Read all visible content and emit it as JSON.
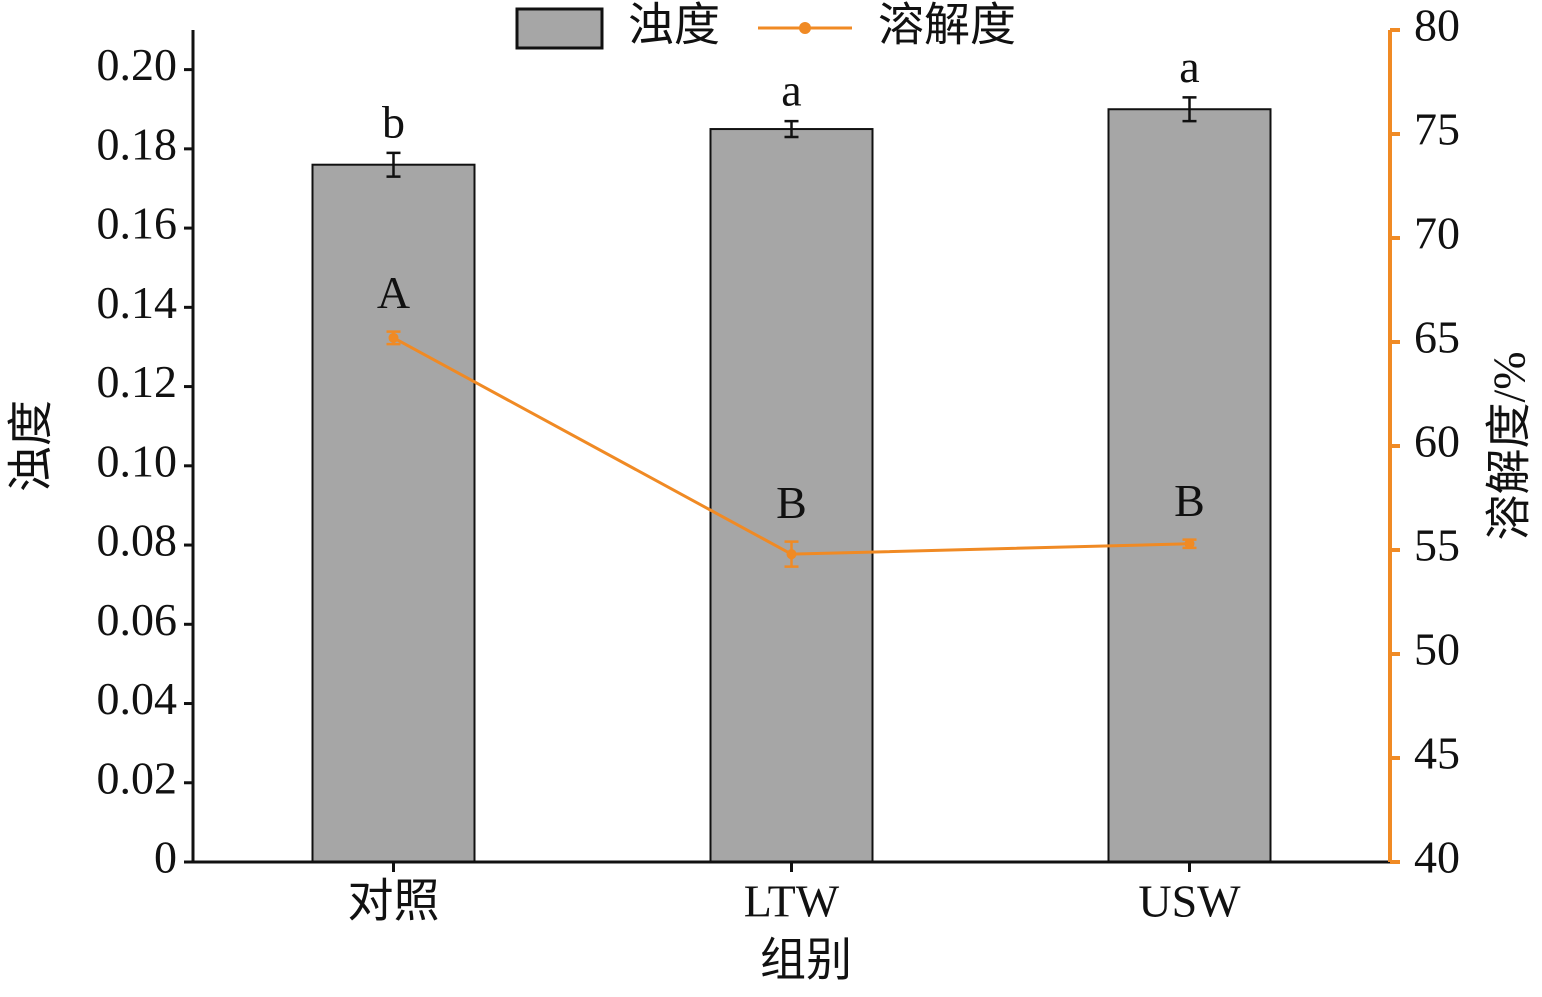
{
  "chart_data": {
    "type": "combo",
    "categories": [
      "对照",
      "LTW",
      "USW"
    ],
    "xlabel": "组别",
    "ylabel": "浊度",
    "y2label": "溶解度/%",
    "ylim": [
      0,
      0.21
    ],
    "yticks": [
      0,
      0.02,
      0.04,
      0.06,
      0.08,
      {
        "value": 0.1,
        "label": "0.10"
      },
      0.12,
      0.14,
      0.16,
      0.18,
      {
        "value": 0.2,
        "label": "0.20"
      }
    ],
    "y2lim": [
      40,
      80
    ],
    "y2ticks": [
      40,
      45,
      50,
      55,
      60,
      65,
      70,
      75,
      80
    ],
    "legend": "top",
    "series": [
      {
        "name": "浊度",
        "type": "bar",
        "color": "#a6a6a6",
        "values": [
          0.176,
          0.185,
          0.19
        ],
        "errors": [
          0.003,
          0.002,
          0.003
        ],
        "significance": [
          "b",
          "a",
          "a"
        ]
      },
      {
        "name": "溶解度",
        "type": "line",
        "axis": "y2",
        "color": "#f08a24",
        "values": [
          65.2,
          54.8,
          55.3
        ],
        "errors": [
          0.3,
          0.6,
          0.2
        ],
        "significance": [
          "A",
          "B",
          "B"
        ]
      }
    ]
  }
}
